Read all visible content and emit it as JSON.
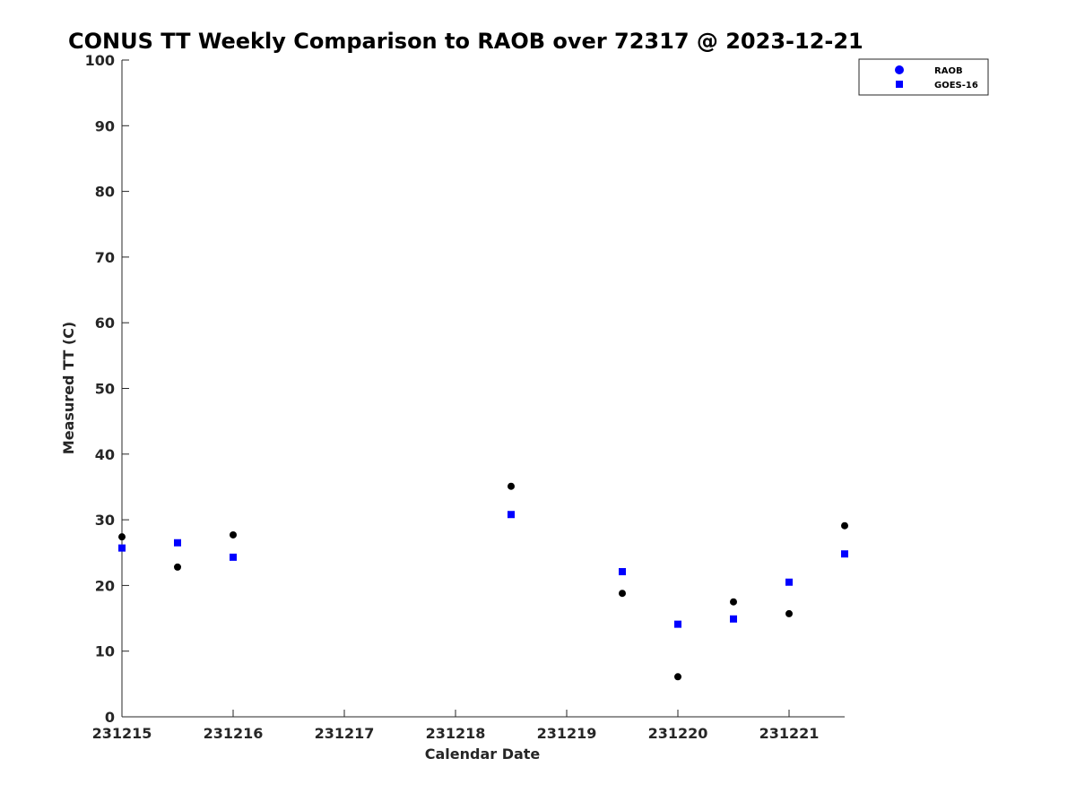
{
  "chart_data": {
    "type": "scatter",
    "title": "CONUS TT Weekly Comparison to RAOB over 72317 @ 2023-12-21",
    "xlabel": "Calendar Date",
    "ylabel": "Measured TT (C)",
    "xlim": [
      "231215",
      "231221 12Z"
    ],
    "ylim": [
      0,
      100
    ],
    "xticks": [
      "231215",
      "231216",
      "231217",
      "231218",
      "231219",
      "231220",
      "231221"
    ],
    "yticks": [
      0,
      10,
      20,
      30,
      40,
      50,
      60,
      70,
      80,
      90,
      100
    ],
    "grid": false,
    "legend_position": "top-right",
    "series": [
      {
        "name": "RAOB",
        "marker": "circle",
        "color": "#000000",
        "legend_color": "#0000ff",
        "points": [
          {
            "x": "231215 00Z",
            "y": 27.4
          },
          {
            "x": "231215 12Z",
            "y": 22.8
          },
          {
            "x": "231216 00Z",
            "y": 27.7
          },
          {
            "x": "231218 12Z",
            "y": 35.1
          },
          {
            "x": "231219 12Z",
            "y": 18.8
          },
          {
            "x": "231220 00Z",
            "y": 6.1
          },
          {
            "x": "231220 12Z",
            "y": 17.5
          },
          {
            "x": "231221 00Z",
            "y": 15.7
          },
          {
            "x": "231221 12Z",
            "y": 29.1
          }
        ]
      },
      {
        "name": "GOES-16",
        "marker": "square",
        "color": "#0000ff",
        "legend_color": "#0000ff",
        "points": [
          {
            "x": "231215 00Z",
            "y": 25.7
          },
          {
            "x": "231215 12Z",
            "y": 26.5
          },
          {
            "x": "231216 00Z",
            "y": 24.3
          },
          {
            "x": "231218 12Z",
            "y": 30.8
          },
          {
            "x": "231219 12Z",
            "y": 22.1
          },
          {
            "x": "231220 00Z",
            "y": 14.1
          },
          {
            "x": "231220 12Z",
            "y": 14.9
          },
          {
            "x": "231221 00Z",
            "y": 20.5
          },
          {
            "x": "231221 12Z",
            "y": 24.8
          }
        ]
      }
    ]
  }
}
